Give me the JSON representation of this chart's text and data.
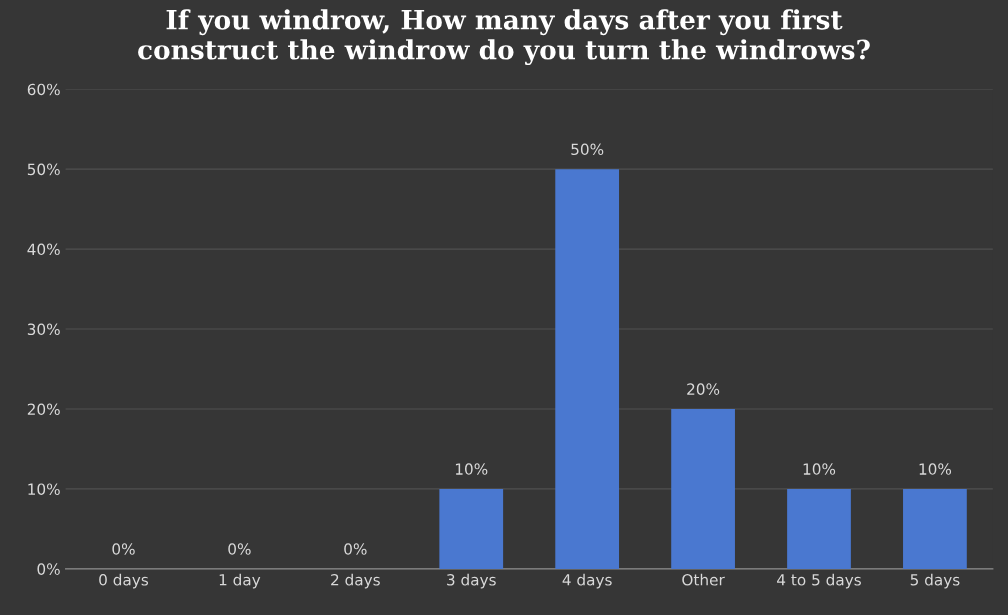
{
  "chart_data": {
    "type": "bar",
    "title": "If you windrow, How many days after you first\nconstruct the windrow do you turn the windrows?",
    "categories": [
      "0 days",
      "1 day",
      "2 days",
      "3 days",
      "4 days",
      "Other",
      "4 to 5 days",
      "5 days"
    ],
    "values": [
      0,
      0,
      0,
      10,
      50,
      20,
      10,
      10
    ],
    "value_labels": [
      "0%",
      "0%",
      "0%",
      "10%",
      "50%",
      "20%",
      "10%",
      "10%"
    ],
    "color": "#4a78d0",
    "ylim": [
      0,
      60
    ],
    "yticks": [
      {
        "value": 0,
        "label": "0%"
      },
      {
        "value": 10,
        "label": "10%"
      },
      {
        "value": 20,
        "label": "20%"
      },
      {
        "value": 30,
        "label": "30%"
      },
      {
        "value": 40,
        "label": "40%"
      },
      {
        "value": 50,
        "label": "50%"
      },
      {
        "value": 60,
        "label": "60%"
      }
    ],
    "grid": "y"
  }
}
